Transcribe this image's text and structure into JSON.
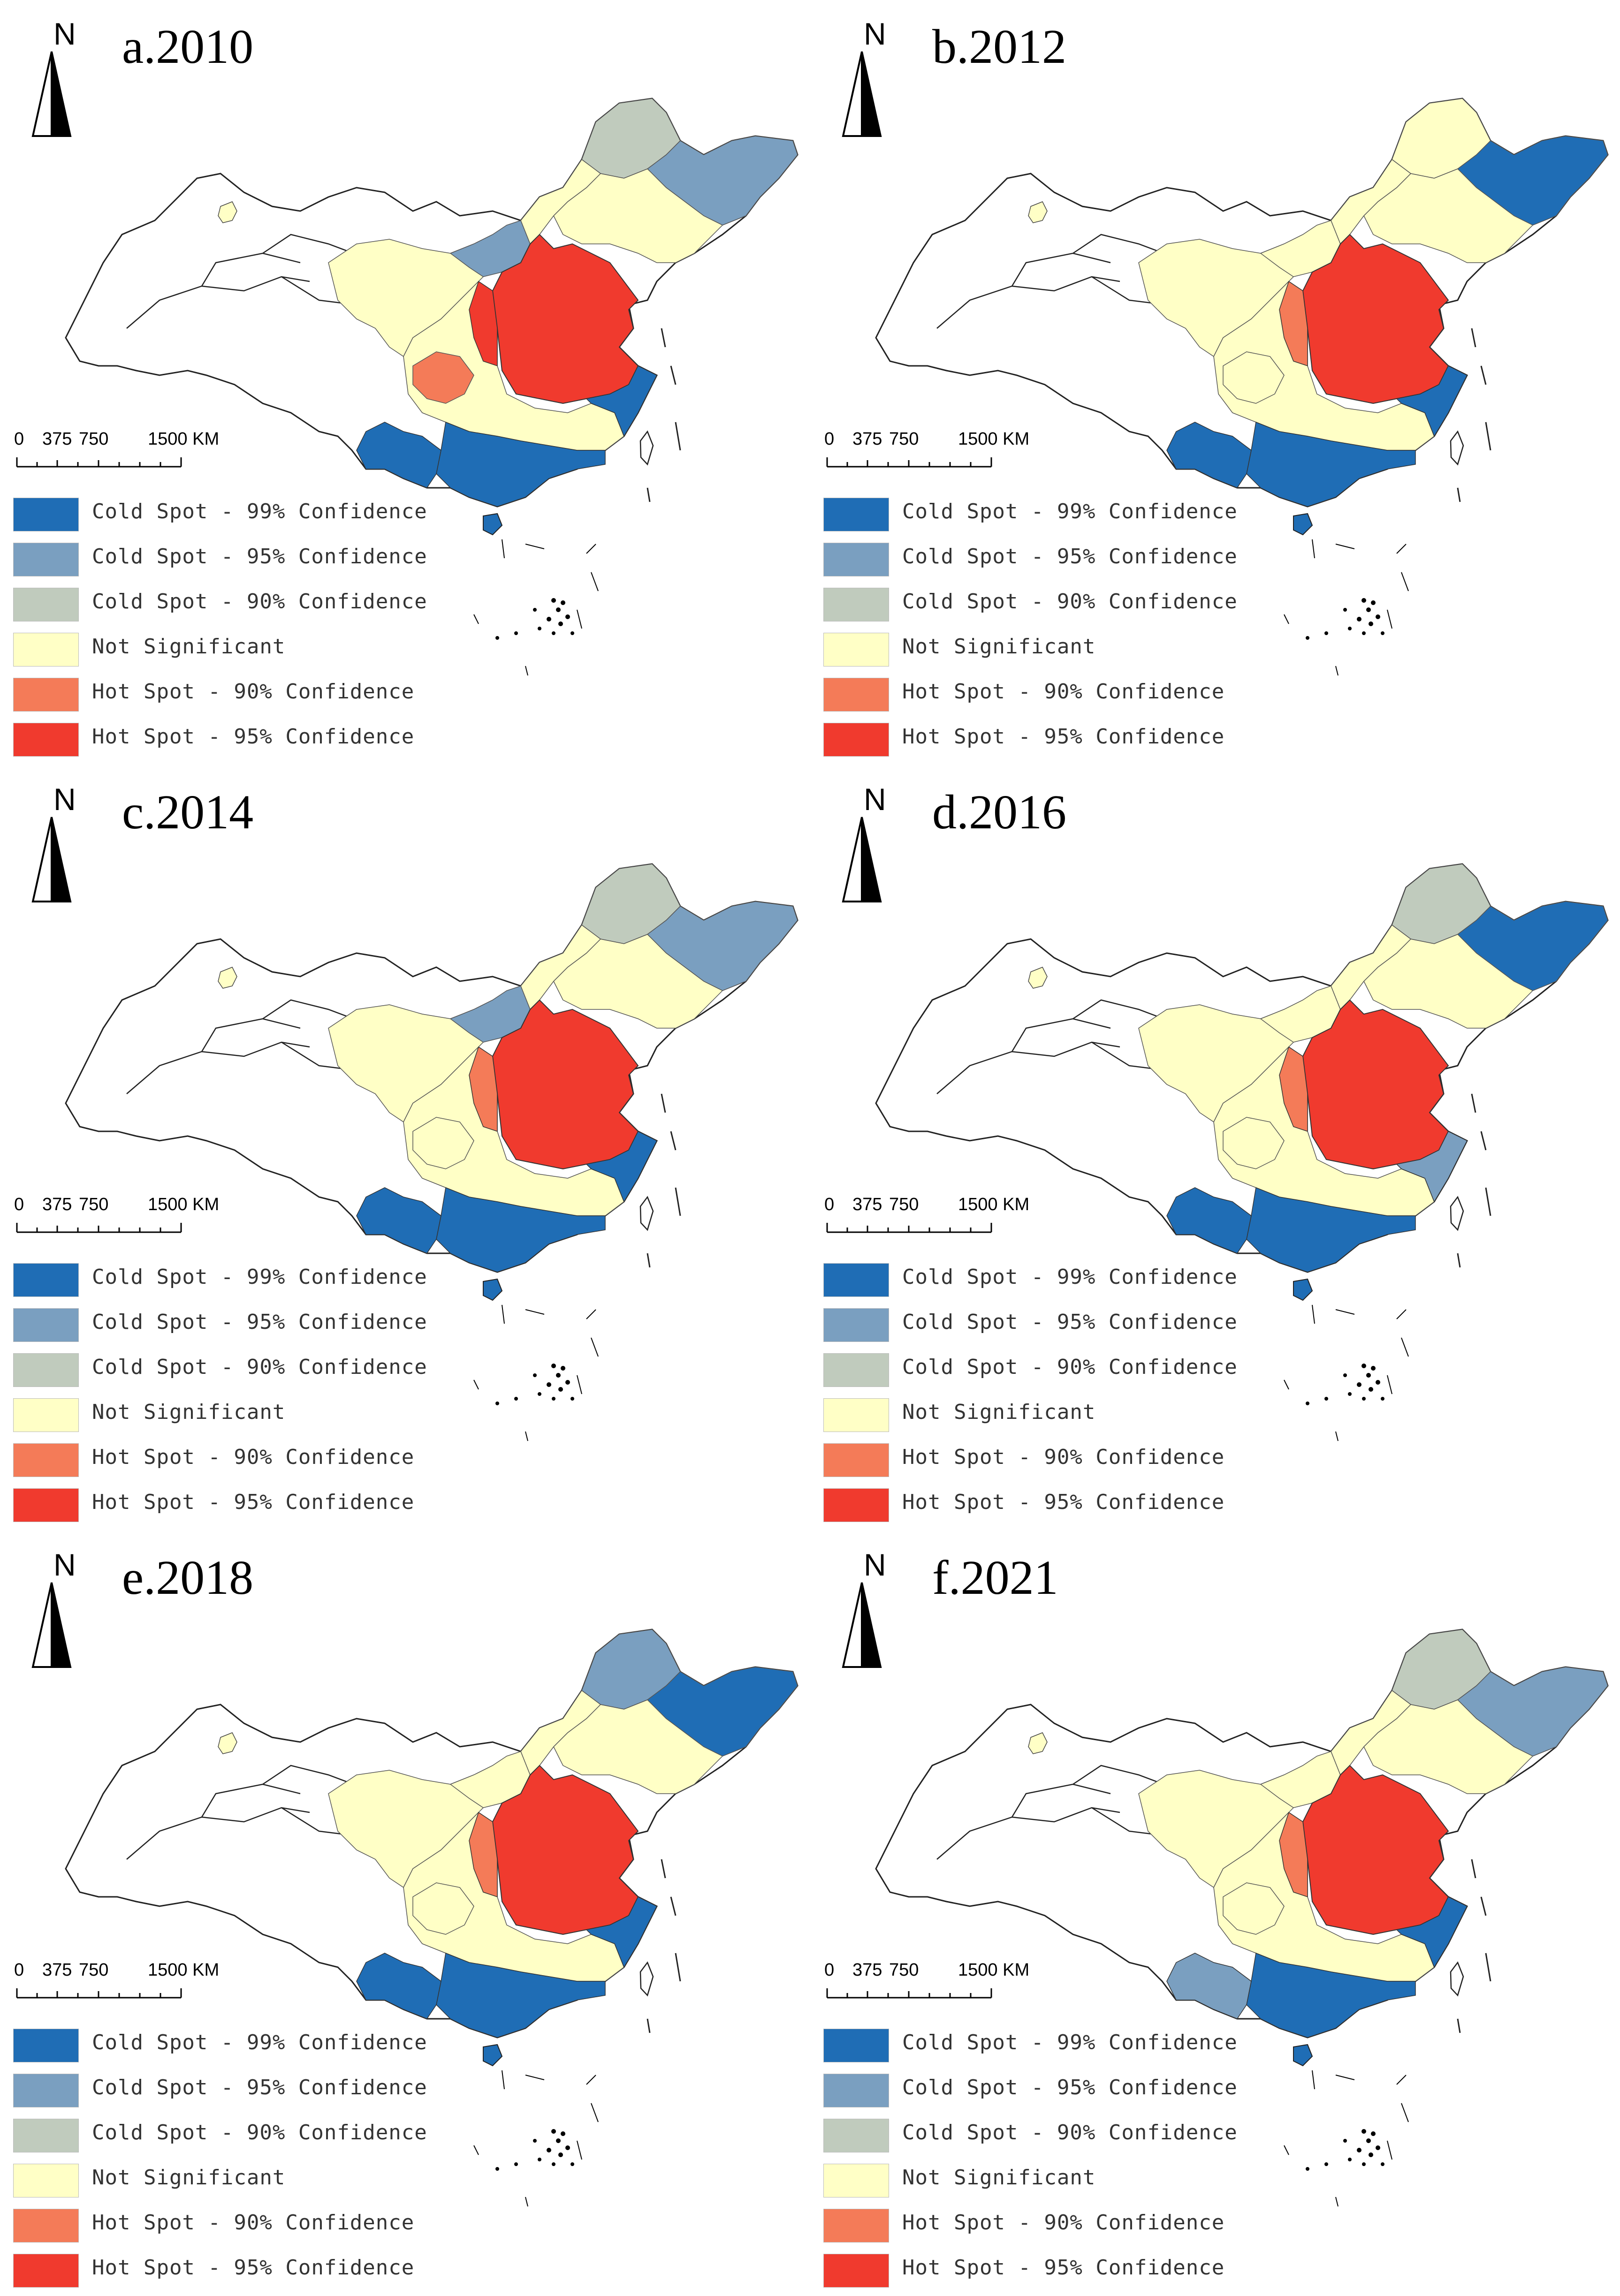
{
  "colors": {
    "cold99": "#1f6db5",
    "cold95": "#7a9fc0",
    "cold90": "#c0cbbd",
    "ns": "#ffffc6",
    "hot90": "#f47b58",
    "hot95": "#f03a2e",
    "none": "#ffffff"
  },
  "north_label": "N",
  "scale_labels": [
    "0",
    "375",
    "750",
    "1500 KM"
  ],
  "legend": [
    {
      "key": "cold99",
      "label": "Cold Spot - 99% Confidence"
    },
    {
      "key": "cold95",
      "label": "Cold Spot - 95% Confidence"
    },
    {
      "key": "cold90",
      "label": "Cold Spot - 90% Confidence"
    },
    {
      "key": "ns",
      "label": "Not Significant"
    },
    {
      "key": "hot90",
      "label": "Hot Spot - 90% Confidence"
    },
    {
      "key": "hot95",
      "label": "Hot Spot - 95% Confidence"
    }
  ],
  "panels": [
    {
      "title": "a.2010",
      "ne_far": "cold90",
      "ne_east": "cold95",
      "north_central": "cold95",
      "west_belt": "ns",
      "core": "hot95",
      "core_edge": "hot95",
      "sw_patch": "hot90",
      "south": "cold99",
      "southwest": "cold99",
      "southeast": "cold99",
      "middle": "ns"
    },
    {
      "title": "b.2012",
      "ne_far": "ns",
      "ne_east": "cold99",
      "north_central": "ns",
      "west_belt": "ns",
      "core": "hot95",
      "core_edge": "hot90",
      "sw_patch": "ns",
      "south": "cold99",
      "southwest": "cold99",
      "southeast": "cold99",
      "middle": "ns"
    },
    {
      "title": "c.2014",
      "ne_far": "cold90",
      "ne_east": "cold95",
      "north_central": "cold95",
      "west_belt": "ns",
      "core": "hot95",
      "core_edge": "hot90",
      "sw_patch": "ns",
      "south": "cold99",
      "southwest": "cold99",
      "southeast": "cold99",
      "middle": "ns"
    },
    {
      "title": "d.2016",
      "ne_far": "cold90",
      "ne_east": "cold99",
      "north_central": "ns",
      "west_belt": "ns",
      "core": "hot95",
      "core_edge": "hot90",
      "sw_patch": "ns",
      "south": "cold99",
      "southwest": "cold99",
      "southeast": "cold95",
      "middle": "ns"
    },
    {
      "title": "e.2018",
      "ne_far": "cold95",
      "ne_east": "cold99",
      "north_central": "ns",
      "west_belt": "ns",
      "core": "hot95",
      "core_edge": "hot90",
      "sw_patch": "ns",
      "south": "cold99",
      "southwest": "cold99",
      "southeast": "cold99",
      "middle": "ns"
    },
    {
      "title": "f.2021",
      "ne_far": "cold90",
      "ne_east": "cold95",
      "north_central": "ns",
      "west_belt": "ns",
      "core": "hot95",
      "core_edge": "hot90",
      "sw_patch": "ns",
      "south": "cold99",
      "southwest": "cold95",
      "southeast": "cold99",
      "middle": "ns"
    }
  ]
}
